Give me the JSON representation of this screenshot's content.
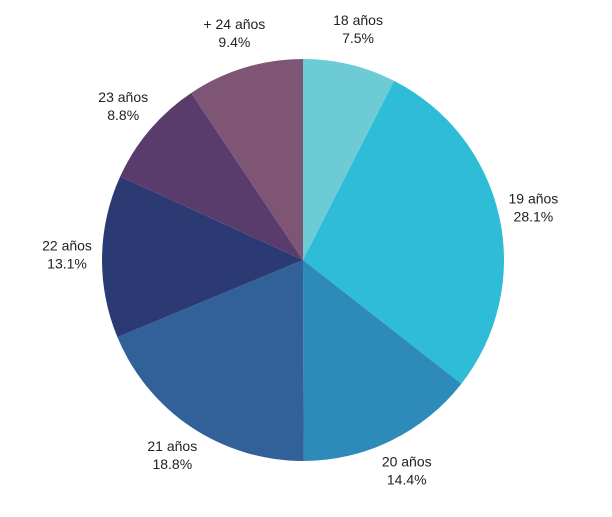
{
  "chart_data": {
    "type": "pie",
    "categories": [
      "18 años",
      "19 años",
      "20 años",
      "21 años",
      "22 años",
      "23 años",
      "+ 24 años"
    ],
    "values": [
      7.5,
      28.1,
      14.4,
      18.8,
      13.1,
      8.8,
      9.4
    ],
    "value_labels": [
      "7.5%",
      "28.1%",
      "14.4%",
      "18.8%",
      "13.1%",
      "8.8%",
      "9.4%"
    ],
    "colors": [
      "#6dcbd6",
      "#2fbcd6",
      "#2e8ab8",
      "#32619a",
      "#2c3a74",
      "#5a3c6c",
      "#7e5574"
    ]
  }
}
